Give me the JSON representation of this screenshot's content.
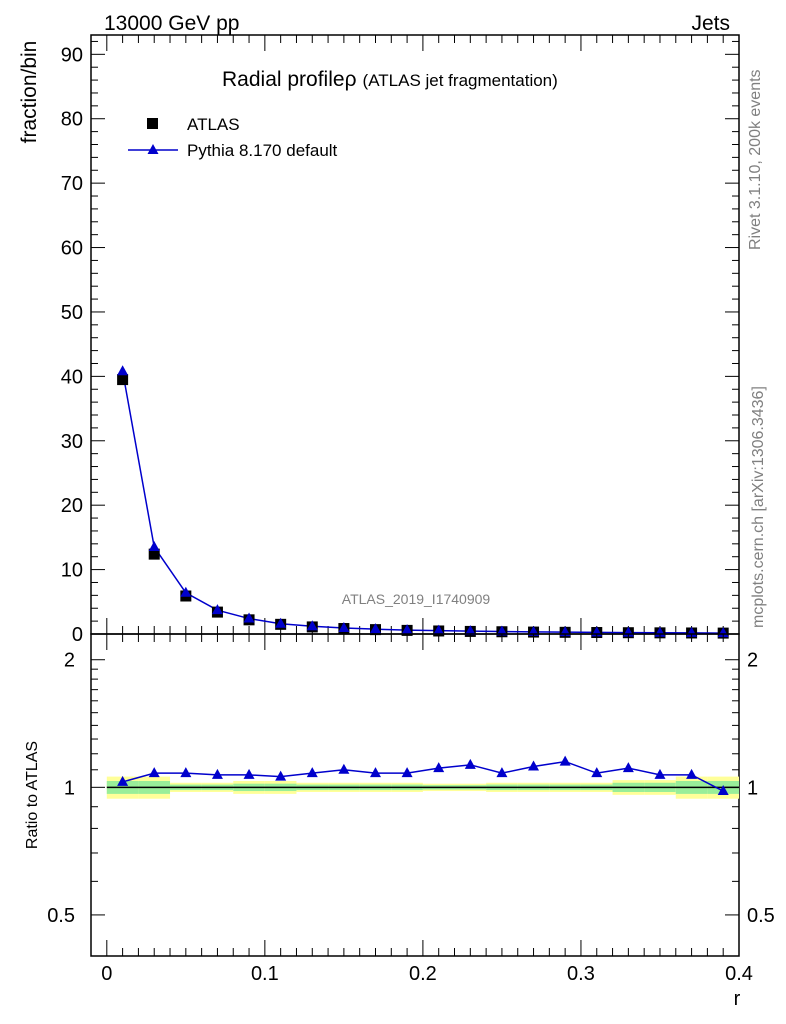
{
  "header": {
    "left": "13000 GeV pp",
    "right": "Jets"
  },
  "side_labels": {
    "upper": "Rivet 3.1.10,  200k events",
    "lower": "mcplots.cern.ch [arXiv:1306.3436]"
  },
  "watermark": "ATLAS_2019_I1740909",
  "chart_data": [
    {
      "type": "scatter",
      "panel": "main",
      "title": "Radial profile",
      "title_symbol": "ρ",
      "title_suffix": "(ATLAS jet fragmentation)",
      "ylabel": "fraction/bin",
      "ylim": [
        0,
        93
      ],
      "yticks": [
        0,
        10,
        20,
        30,
        40,
        50,
        60,
        70,
        80,
        90
      ],
      "ytick_labels": [
        "0",
        "10",
        "20",
        "30",
        "40",
        "50",
        "60",
        "70",
        "80",
        "90"
      ],
      "xlim": [
        -0.01,
        0.4
      ],
      "x": [
        0.01,
        0.03,
        0.05,
        0.07,
        0.09,
        0.11,
        0.13,
        0.15,
        0.17,
        0.19,
        0.21,
        0.23,
        0.25,
        0.27,
        0.29,
        0.31,
        0.33,
        0.35,
        0.37,
        0.39
      ],
      "legend": {
        "position": "top-left",
        "entries": [
          "ATLAS",
          "Pythia 8.170 default"
        ]
      },
      "series": [
        {
          "name": "ATLAS",
          "marker": "square",
          "color": "#000000",
          "values": [
            39.5,
            12.4,
            5.9,
            3.4,
            2.2,
            1.5,
            1.1,
            0.85,
            0.68,
            0.56,
            0.47,
            0.4,
            0.35,
            0.3,
            0.26,
            0.23,
            0.2,
            0.18,
            0.16,
            0.14
          ]
        },
        {
          "name": "Pythia 8.170 default",
          "marker": "triangle",
          "color": "#0000cc",
          "values": [
            40.8,
            13.5,
            6.4,
            3.7,
            2.4,
            1.6,
            1.2,
            0.94,
            0.75,
            0.61,
            0.52,
            0.44,
            0.38,
            0.33,
            0.29,
            0.25,
            0.22,
            0.2,
            0.17,
            0.14
          ]
        }
      ]
    },
    {
      "type": "line",
      "panel": "ratio",
      "ylabel": "Ratio to ATLAS",
      "xlabel": "r",
      "ylim": [
        0.4,
        2.3
      ],
      "yticks": [
        0.5,
        1,
        2
      ],
      "ytick_labels": [
        "0.5",
        "1",
        "2"
      ],
      "xlim": [
        -0.01,
        0.4
      ],
      "xticks": [
        0,
        0.1,
        0.2,
        0.3,
        0.4
      ],
      "xtick_labels": [
        "0",
        "0.1",
        "0.2",
        "0.3",
        "0.4"
      ],
      "x": [
        0.01,
        0.03,
        0.05,
        0.07,
        0.09,
        0.11,
        0.13,
        0.15,
        0.17,
        0.19,
        0.21,
        0.23,
        0.25,
        0.27,
        0.29,
        0.31,
        0.33,
        0.35,
        0.37,
        0.39
      ],
      "bin_edges": [
        0.0,
        0.02,
        0.04,
        0.06,
        0.08,
        0.1,
        0.12,
        0.14,
        0.16,
        0.18,
        0.2,
        0.22,
        0.24,
        0.26,
        0.28,
        0.3,
        0.32,
        0.34,
        0.36,
        0.38,
        0.4
      ],
      "band_outer_halfwidth": [
        0.06,
        0.06,
        0.025,
        0.025,
        0.035,
        0.035,
        0.025,
        0.025,
        0.025,
        0.025,
        0.02,
        0.02,
        0.025,
        0.025,
        0.025,
        0.025,
        0.04,
        0.04,
        0.06,
        0.06
      ],
      "band_inner_halfwidth": [
        0.035,
        0.035,
        0.015,
        0.015,
        0.02,
        0.02,
        0.015,
        0.015,
        0.015,
        0.015,
        0.012,
        0.012,
        0.015,
        0.015,
        0.015,
        0.015,
        0.025,
        0.025,
        0.035,
        0.035
      ],
      "band_colors": {
        "outer": "#ffff99",
        "inner": "#99ee99"
      },
      "series": [
        {
          "name": "ATLAS",
          "color": "#000000",
          "values": [
            1,
            1,
            1,
            1,
            1,
            1,
            1,
            1,
            1,
            1,
            1,
            1,
            1,
            1,
            1,
            1,
            1,
            1,
            1,
            1
          ]
        },
        {
          "name": "Pythia 8.170 default",
          "color": "#0000cc",
          "marker": "triangle",
          "values": [
            1.03,
            1.08,
            1.08,
            1.07,
            1.07,
            1.06,
            1.08,
            1.1,
            1.08,
            1.08,
            1.11,
            1.13,
            1.08,
            1.12,
            1.15,
            1.08,
            1.11,
            1.07,
            1.07,
            0.98
          ]
        }
      ]
    }
  ]
}
